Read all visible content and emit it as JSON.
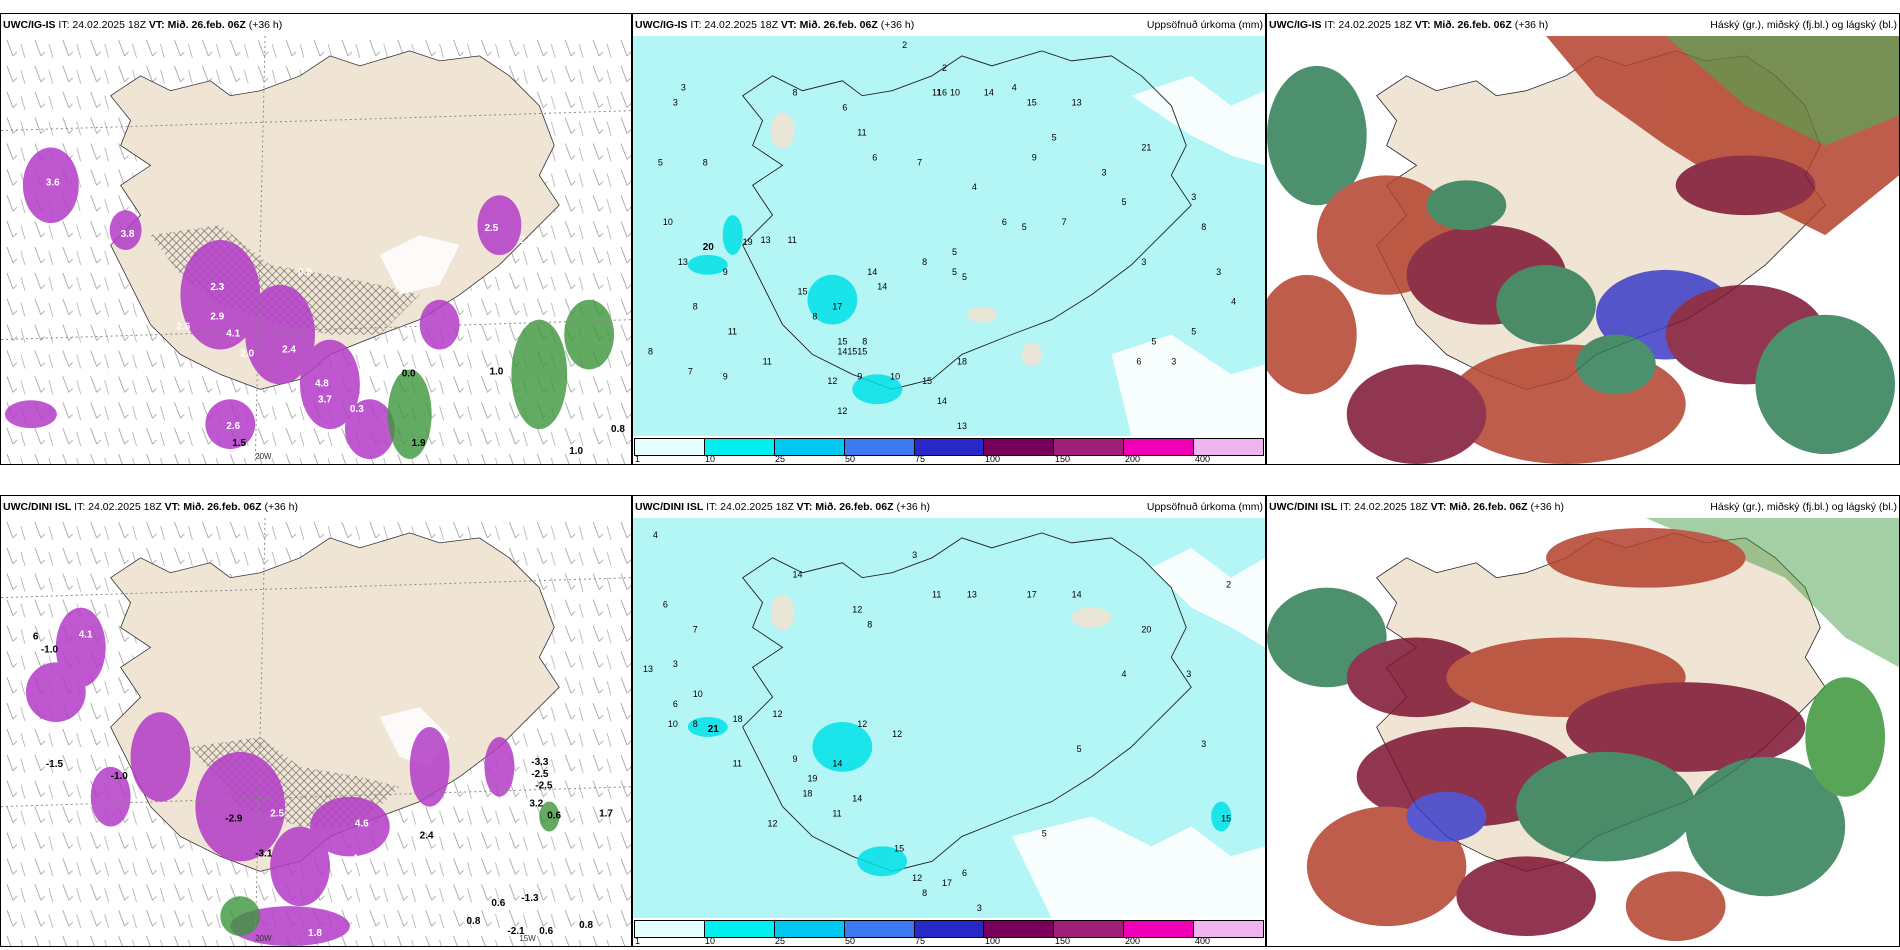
{
  "top": {
    "left": {
      "model": "UWC/IG-IS",
      "it": "IT: 24.02.2025 18Z",
      "vt": "VT: Mið. 26.feb. 06Z",
      "lead": "(+36 h)",
      "title": ""
    },
    "middle": {
      "model": "UWC/IG-IS",
      "it": "IT: 24.02.2025 18Z",
      "vt": "VT: Mið. 26.feb. 06Z",
      "lead": "(+36 h)",
      "title": "Uppsöfnuð úrkoma (mm)"
    },
    "right": {
      "model": "UWC/IG-IS",
      "it": "IT: 24.02.2025 18Z",
      "vt": "VT: Mið. 26.feb. 06Z",
      "lead": "(+36 h)",
      "title": "Háský (gr.), miðský (fj.bl.) og lágský (bl.)"
    }
  },
  "bottom": {
    "left": {
      "model": "UWC/DINI ISL",
      "it": "IT: 24.02.2025 18Z",
      "vt": "VT: Mið. 26.feb. 06Z",
      "lead": "(+36 h)",
      "title": ""
    },
    "middle": {
      "model": "UWC/DINI ISL",
      "it": "IT: 24.02.2025 18Z",
      "vt": "VT: Mið. 26.feb. 06Z",
      "lead": "(+36 h)",
      "title": "Uppsöfnuð úrkoma (mm)"
    },
    "right": {
      "model": "UWC/DINI ISL",
      "it": "IT: 24.02.2025 18Z",
      "vt": "VT: Mið. 26.feb. 06Z",
      "lead": "(+36 h)",
      "title": "Háský (gr.), miðský (fj.bl.) og lágský (bl.)"
    }
  },
  "axis_labels": {
    "lon20w": "20W",
    "lon15w": "15W",
    "lat66n": "66N"
  },
  "colorbar": {
    "ticks": [
      "1",
      "10",
      "25",
      "50",
      "75",
      "100",
      "150",
      "200",
      "400"
    ],
    "colors": [
      "#e6ffff",
      "#00f0f0",
      "#00c8f0",
      "#3c78f0",
      "#2828c8",
      "#78005a",
      "#a01e78",
      "#f000b4",
      "#f0b4f0"
    ]
  },
  "colors": {
    "land": "#f0e4d4",
    "precip_bg": "#b4f5f5",
    "purple": "#b43cc8",
    "green": "#3c963c",
    "cloud_red": "#b4412d",
    "cloud_maroon": "#7d1432",
    "cloud_green": "#2d7d55",
    "cloud_blue": "#3c3cc8"
  },
  "station_values": {
    "top_middle": [
      "2",
      "3",
      "2",
      "4",
      "3",
      "8",
      "11",
      "6",
      "5",
      "16",
      "10",
      "14",
      "15",
      "13",
      "5",
      "8",
      "9",
      "21",
      "6",
      "7",
      "11",
      "4",
      "3",
      "13",
      "15",
      "14",
      "8",
      "10",
      "20",
      "19",
      "13",
      "11",
      "9",
      "8",
      "8",
      "15",
      "17",
      "14",
      "15",
      "15",
      "14",
      "18",
      "5",
      "5",
      "5",
      "6",
      "5",
      "9",
      "8",
      "10",
      "12",
      "13",
      "15",
      "14",
      "12",
      "7",
      "5",
      "5",
      "8",
      "3",
      "3",
      "3",
      "4",
      "5",
      "3",
      "6",
      "7",
      "9",
      "11",
      "11",
      "8"
    ],
    "bottom_middle": [
      "4",
      "3",
      "6",
      "7",
      "3",
      "13",
      "14",
      "12",
      "13",
      "11",
      "17",
      "14",
      "8",
      "6",
      "20",
      "10",
      "10",
      "8",
      "21",
      "18",
      "12",
      "9",
      "11",
      "19",
      "18",
      "14",
      "12",
      "12",
      "14",
      "11",
      "12",
      "15",
      "12",
      "17",
      "6",
      "8",
      "3",
      "5",
      "4",
      "3",
      "15",
      "5",
      "3",
      "2"
    ]
  },
  "field_values": {
    "top_left": [
      "3.6",
      "1.9",
      "3.8",
      "2.3",
      "2.9",
      "4.1",
      "2.0",
      "2.5",
      "1.0",
      "0.0",
      "0.8",
      "1.0",
      "0.3",
      "2.1",
      "1.9",
      "4.8",
      "3.7",
      "2.6",
      "2.8",
      "2.6",
      "1.5",
      "0.9",
      "2.4"
    ],
    "bottom_left": [
      "6",
      "-1.0",
      "4.1",
      "-1.5",
      "-1.0",
      "-2.5",
      "-3.3",
      "-2.5",
      "3.2",
      "0.6",
      "0.8",
      "0.6",
      "-2.1",
      "-1.3",
      "0.6",
      "0.8",
      "1.8",
      "2.5",
      "4.6",
      "2.4",
      "1.7",
      "-1.0",
      "-3.1",
      "-2.9"
    ]
  }
}
